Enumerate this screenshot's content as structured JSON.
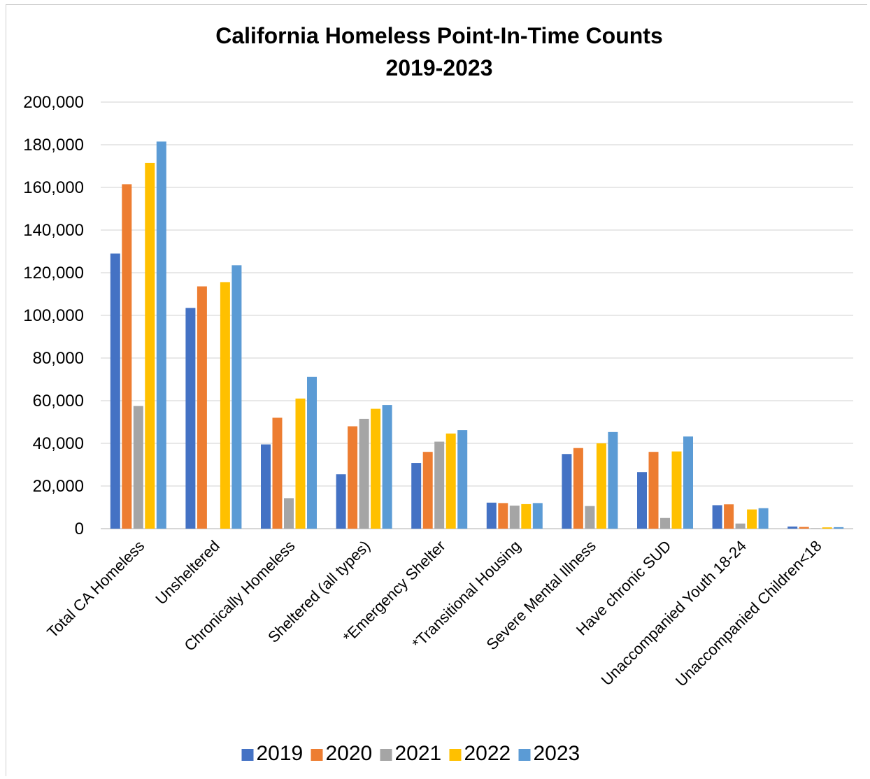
{
  "chart_data": {
    "type": "bar",
    "title": [
      "California Homeless Point-In-Time Counts",
      "2019-2023"
    ],
    "categories": [
      "Total CA Homeless",
      "Unsheltered",
      "Chronically Homeless",
      "Sheltered (all types)",
      "*Emergency Shelter",
      "*Transitional Housing",
      "Severe Mental Illness",
      "Have chronic SUD",
      "Unaccompanied Youth 18-24",
      "Unaccompanied Children<18"
    ],
    "series": [
      {
        "name": "2019",
        "color": "#4472C4",
        "values": [
          129000,
          103500,
          39500,
          25500,
          30800,
          12200,
          35000,
          26500,
          11000,
          1000
        ]
      },
      {
        "name": "2020",
        "color": "#ED7D31",
        "values": [
          161500,
          113600,
          52000,
          48000,
          36000,
          12000,
          37800,
          36000,
          11400,
          800
        ]
      },
      {
        "name": "2021",
        "color": "#A5A5A5",
        "values": [
          57500,
          0,
          14300,
          51500,
          40800,
          10800,
          10600,
          5000,
          2400,
          200
        ]
      },
      {
        "name": "2022",
        "color": "#FFC000",
        "values": [
          171500,
          115600,
          61000,
          56200,
          44600,
          11500,
          40000,
          36200,
          9000,
          600
        ]
      },
      {
        "name": "2023",
        "color": "#5B9BD5",
        "values": [
          181500,
          123500,
          71200,
          58000,
          46200,
          12000,
          45300,
          43200,
          9600,
          700
        ]
      }
    ],
    "ylim": [
      0,
      200000
    ],
    "yticks": [
      "0",
      "20,000",
      "40,000",
      "60,000",
      "80,000",
      "100,000",
      "120,000",
      "140,000",
      "160,000",
      "180,000",
      "200,000"
    ],
    "grid": true,
    "legend_position": "bottom"
  }
}
